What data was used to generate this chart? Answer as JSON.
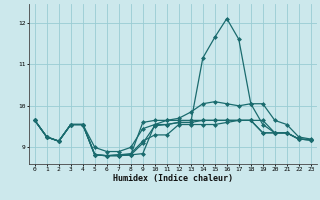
{
  "title": "",
  "xlabel": "Humidex (Indice chaleur)",
  "ylabel": "",
  "bg_color": "#cce8ec",
  "grid_color": "#99ccd4",
  "line_color": "#1a6b6e",
  "xlim": [
    -0.5,
    23.5
  ],
  "ylim": [
    8.6,
    12.45
  ],
  "yticks": [
    9,
    10,
    11,
    12
  ],
  "xticks": [
    0,
    1,
    2,
    3,
    4,
    5,
    6,
    7,
    8,
    9,
    10,
    11,
    12,
    13,
    14,
    15,
    16,
    17,
    18,
    19,
    20,
    21,
    22,
    23
  ],
  "series": [
    [
      9.65,
      9.25,
      9.15,
      9.55,
      9.55,
      8.82,
      8.8,
      8.8,
      8.82,
      8.85,
      9.55,
      9.55,
      9.6,
      9.6,
      11.15,
      11.65,
      12.1,
      11.6,
      10.05,
      9.55,
      9.35,
      9.35,
      9.2,
      9.18
    ],
    [
      9.65,
      9.25,
      9.15,
      9.55,
      9.55,
      8.82,
      8.8,
      8.8,
      8.82,
      9.6,
      9.65,
      9.65,
      9.65,
      9.65,
      9.65,
      9.65,
      9.65,
      9.65,
      9.65,
      9.35,
      9.35,
      9.35,
      9.2,
      9.18
    ],
    [
      9.65,
      9.25,
      9.15,
      9.55,
      9.55,
      8.82,
      8.8,
      8.82,
      8.85,
      9.15,
      9.3,
      9.3,
      9.55,
      9.55,
      9.55,
      9.55,
      9.6,
      9.65,
      9.65,
      9.35,
      9.35,
      9.35,
      9.2,
      9.18
    ],
    [
      9.65,
      9.25,
      9.15,
      9.55,
      9.55,
      8.82,
      8.8,
      8.82,
      8.82,
      9.1,
      9.52,
      9.55,
      9.6,
      9.6,
      9.65,
      9.65,
      9.65,
      9.65,
      9.65,
      9.65,
      9.35,
      9.35,
      9.2,
      9.18
    ],
    [
      9.65,
      9.25,
      9.15,
      9.55,
      9.55,
      9.0,
      8.9,
      8.9,
      9.0,
      9.45,
      9.55,
      9.65,
      9.7,
      9.85,
      10.05,
      10.1,
      10.05,
      10.0,
      10.05,
      10.05,
      9.65,
      9.55,
      9.25,
      9.2
    ]
  ],
  "marker_size": 2.5,
  "line_width": 0.9
}
